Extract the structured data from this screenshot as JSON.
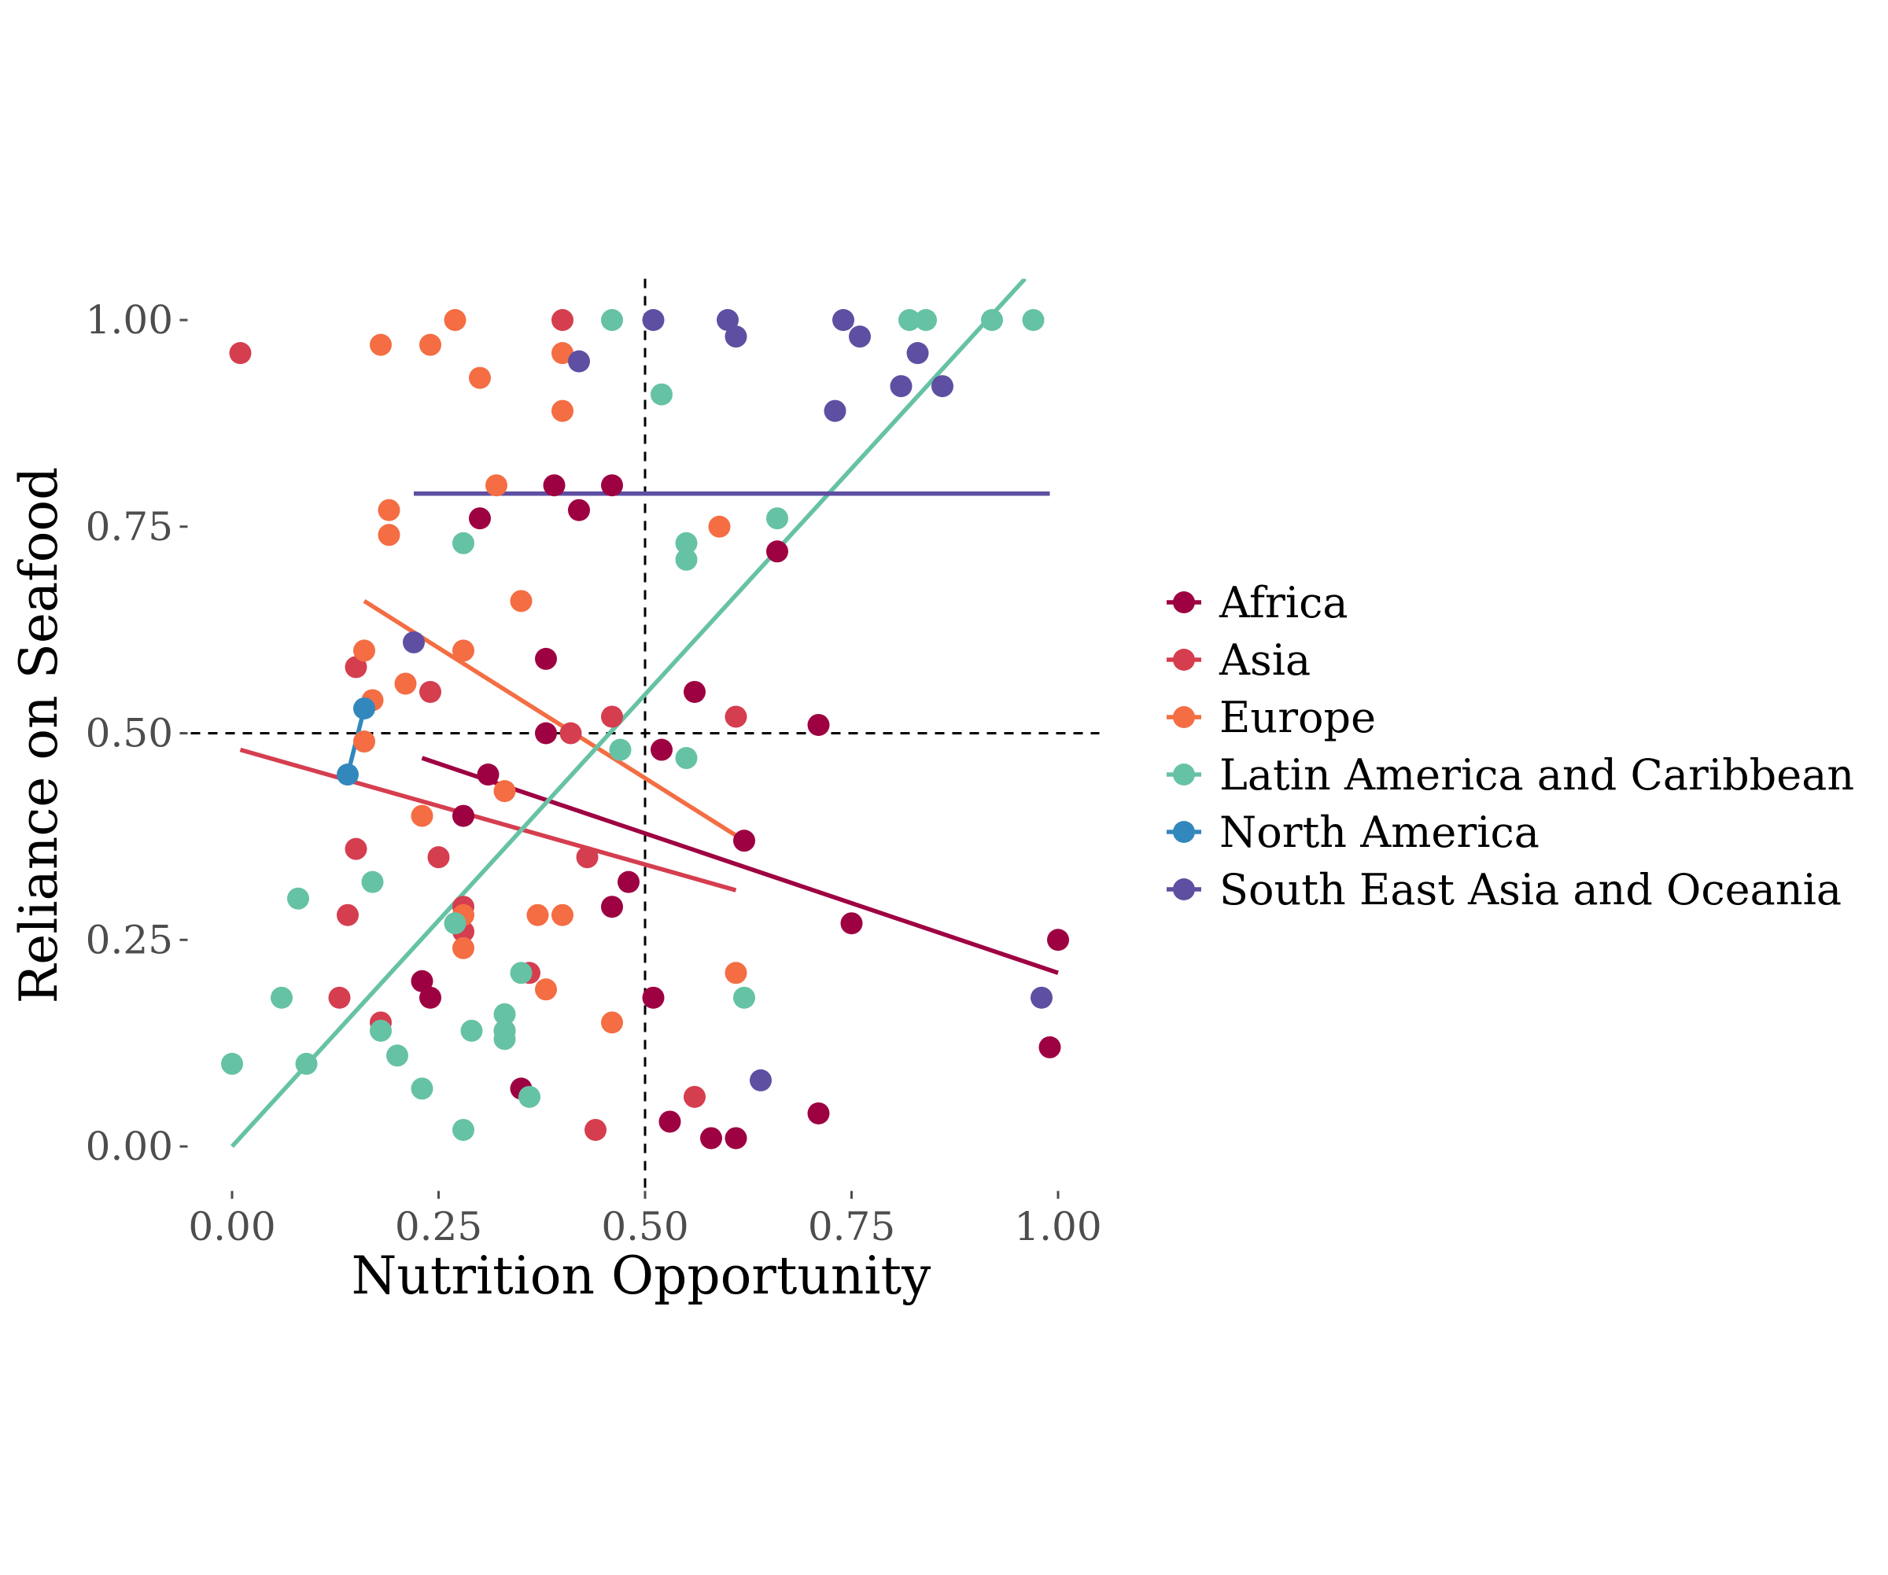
{
  "chart_data": {
    "type": "scatter",
    "xlabel": "Nutrition Opportunity",
    "ylabel": "Reliance on Seafood",
    "xlim": [
      -0.05,
      1.05
    ],
    "ylim": [
      -0.05,
      1.05
    ],
    "x_ticks": [
      {
        "value": 0.0,
        "label": "0.00"
      },
      {
        "value": 0.25,
        "label": "0.25"
      },
      {
        "value": 0.5,
        "label": "0.50"
      },
      {
        "value": 0.75,
        "label": "0.75"
      },
      {
        "value": 1.0,
        "label": "1.00"
      }
    ],
    "y_ticks": [
      {
        "value": 0.0,
        "label": "0.00"
      },
      {
        "value": 0.25,
        "label": "0.25"
      },
      {
        "value": 0.5,
        "label": "0.50"
      },
      {
        "value": 0.75,
        "label": "0.75"
      },
      {
        "value": 1.0,
        "label": "1.00"
      }
    ],
    "grid": false,
    "legend_position": "right",
    "reference_lines": {
      "vertical_x": 0.5,
      "horizontal_y": 0.5,
      "style": "dashed"
    },
    "series": [
      {
        "name": "Africa",
        "color": "#9e0142",
        "points": [
          [
            0.3,
            0.76
          ],
          [
            0.39,
            0.8
          ],
          [
            0.46,
            0.8
          ],
          [
            0.42,
            0.77
          ],
          [
            0.66,
            0.72
          ],
          [
            0.38,
            0.59
          ],
          [
            0.56,
            0.55
          ],
          [
            0.38,
            0.5
          ],
          [
            0.52,
            0.48
          ],
          [
            0.71,
            0.51
          ],
          [
            0.31,
            0.45
          ],
          [
            0.28,
            0.4
          ],
          [
            0.62,
            0.37
          ],
          [
            0.48,
            0.32
          ],
          [
            0.46,
            0.29
          ],
          [
            0.75,
            0.27
          ],
          [
            1.0,
            0.25
          ],
          [
            0.23,
            0.2
          ],
          [
            0.24,
            0.18
          ],
          [
            0.51,
            0.18
          ],
          [
            0.99,
            0.12
          ],
          [
            0.35,
            0.07
          ],
          [
            0.53,
            0.03
          ],
          [
            0.58,
            0.01
          ],
          [
            0.61,
            0.01
          ],
          [
            0.71,
            0.04
          ]
        ],
        "trend": [
          [
            0.23,
            0.47
          ],
          [
            1.0,
            0.21
          ]
        ]
      },
      {
        "name": "Asia",
        "color": "#d53e4f",
        "points": [
          [
            0.01,
            0.96
          ],
          [
            0.4,
            1.0
          ],
          [
            0.15,
            0.58
          ],
          [
            0.24,
            0.55
          ],
          [
            0.41,
            0.5
          ],
          [
            0.46,
            0.52
          ],
          [
            0.61,
            0.52
          ],
          [
            0.15,
            0.36
          ],
          [
            0.25,
            0.35
          ],
          [
            0.43,
            0.35
          ],
          [
            0.14,
            0.28
          ],
          [
            0.28,
            0.29
          ],
          [
            0.28,
            0.26
          ],
          [
            0.13,
            0.18
          ],
          [
            0.18,
            0.15
          ],
          [
            0.36,
            0.21
          ],
          [
            0.44,
            0.02
          ],
          [
            0.56,
            0.06
          ]
        ],
        "trend": [
          [
            0.01,
            0.48
          ],
          [
            0.61,
            0.31
          ]
        ]
      },
      {
        "name": "Europe",
        "color": "#f46d43",
        "points": [
          [
            0.18,
            0.97
          ],
          [
            0.24,
            0.97
          ],
          [
            0.27,
            1.0
          ],
          [
            0.4,
            0.96
          ],
          [
            0.3,
            0.93
          ],
          [
            0.4,
            0.89
          ],
          [
            0.19,
            0.77
          ],
          [
            0.32,
            0.8
          ],
          [
            0.19,
            0.74
          ],
          [
            0.59,
            0.75
          ],
          [
            0.35,
            0.66
          ],
          [
            0.16,
            0.6
          ],
          [
            0.28,
            0.6
          ],
          [
            0.21,
            0.56
          ],
          [
            0.17,
            0.54
          ],
          [
            0.16,
            0.49
          ],
          [
            0.33,
            0.43
          ],
          [
            0.23,
            0.4
          ],
          [
            0.28,
            0.28
          ],
          [
            0.37,
            0.28
          ],
          [
            0.4,
            0.28
          ],
          [
            0.28,
            0.24
          ],
          [
            0.38,
            0.19
          ],
          [
            0.46,
            0.15
          ],
          [
            0.33,
            0.14
          ],
          [
            0.61,
            0.21
          ]
        ],
        "trend": [
          [
            0.16,
            0.66
          ],
          [
            0.62,
            0.37
          ]
        ]
      },
      {
        "name": "Latin America and Caribbean",
        "color": "#66c2a5",
        "points": [
          [
            0.46,
            1.0
          ],
          [
            0.82,
            1.0
          ],
          [
            0.84,
            1.0
          ],
          [
            0.92,
            1.0
          ],
          [
            0.97,
            1.0
          ],
          [
            0.52,
            0.91
          ],
          [
            0.28,
            0.73
          ],
          [
            0.55,
            0.73
          ],
          [
            0.55,
            0.71
          ],
          [
            0.66,
            0.76
          ],
          [
            0.47,
            0.48
          ],
          [
            0.55,
            0.47
          ],
          [
            0.17,
            0.32
          ],
          [
            0.08,
            0.3
          ],
          [
            0.27,
            0.27
          ],
          [
            0.06,
            0.18
          ],
          [
            0.35,
            0.21
          ],
          [
            0.33,
            0.16
          ],
          [
            0.33,
            0.14
          ],
          [
            0.29,
            0.14
          ],
          [
            0.33,
            0.13
          ],
          [
            0.62,
            0.18
          ],
          [
            0.18,
            0.14
          ],
          [
            0.2,
            0.11
          ],
          [
            0.09,
            0.1
          ],
          [
            0.0,
            0.1
          ],
          [
            0.23,
            0.07
          ],
          [
            0.36,
            0.06
          ],
          [
            0.28,
            0.02
          ]
        ],
        "trend": [
          [
            0.0,
            0.0
          ],
          [
            0.96,
            1.05
          ]
        ]
      },
      {
        "name": "North America",
        "color": "#3288bd",
        "points": [
          [
            0.14,
            0.45
          ],
          [
            0.16,
            0.53
          ]
        ],
        "trend": [
          [
            0.14,
            0.45
          ],
          [
            0.16,
            0.53
          ]
        ]
      },
      {
        "name": "South East Asia and Oceania",
        "color": "#5e4fa2",
        "points": [
          [
            0.51,
            1.0
          ],
          [
            0.6,
            1.0
          ],
          [
            0.61,
            0.98
          ],
          [
            0.74,
            1.0
          ],
          [
            0.76,
            0.98
          ],
          [
            0.42,
            0.95
          ],
          [
            0.83,
            0.96
          ],
          [
            0.81,
            0.92
          ],
          [
            0.86,
            0.92
          ],
          [
            0.73,
            0.89
          ],
          [
            0.22,
            0.61
          ],
          [
            0.98,
            0.18
          ],
          [
            0.64,
            0.08
          ]
        ],
        "trend": [
          [
            0.22,
            0.79
          ],
          [
            0.99,
            0.79
          ]
        ]
      }
    ]
  }
}
